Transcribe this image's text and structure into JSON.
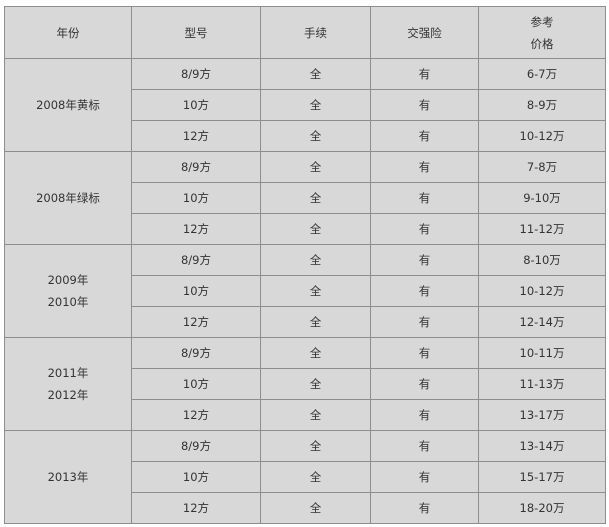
{
  "headers": {
    "year": "年份",
    "model": "型号",
    "papers": "手续",
    "insurance": "交强险",
    "price_line1": "参考",
    "price_line2": "价格"
  },
  "groups": [
    {
      "year_line1": "2008年黄标",
      "year_line2": "",
      "rows": [
        {
          "model": "8/9方",
          "papers": "全",
          "insurance": "有",
          "price": "6-7万"
        },
        {
          "model": "10方",
          "papers": "全",
          "insurance": "有",
          "price": "8-9万"
        },
        {
          "model": "12方",
          "papers": "全",
          "insurance": "有",
          "price": "10-12万"
        }
      ]
    },
    {
      "year_line1": "2008年绿标",
      "year_line2": "",
      "rows": [
        {
          "model": "8/9方",
          "papers": "全",
          "insurance": "有",
          "price": "7-8万"
        },
        {
          "model": "10方",
          "papers": "全",
          "insurance": "有",
          "price": "9-10万"
        },
        {
          "model": "12方",
          "papers": "全",
          "insurance": "有",
          "price": "11-12万"
        }
      ]
    },
    {
      "year_line1": "2009年",
      "year_line2": "2010年",
      "rows": [
        {
          "model": "8/9方",
          "papers": "全",
          "insurance": "有",
          "price": "8-10万"
        },
        {
          "model": "10方",
          "papers": "全",
          "insurance": "有",
          "price": "10-12万"
        },
        {
          "model": "12方",
          "papers": "全",
          "insurance": "有",
          "price": "12-14万"
        }
      ]
    },
    {
      "year_line1": "2011年",
      "year_line2": "2012年",
      "rows": [
        {
          "model": "8/9方",
          "papers": "全",
          "insurance": "有",
          "price": "10-11万"
        },
        {
          "model": "10方",
          "papers": "全",
          "insurance": "有",
          "price": "11-13万"
        },
        {
          "model": "12方",
          "papers": "全",
          "insurance": "有",
          "price": "13-17万"
        }
      ]
    },
    {
      "year_line1": "2013年",
      "year_line2": "",
      "rows": [
        {
          "model": "8/9方",
          "papers": "全",
          "insurance": "有",
          "price": "13-14万"
        },
        {
          "model": "10方",
          "papers": "全",
          "insurance": "有",
          "price": "15-17万"
        },
        {
          "model": "12方",
          "papers": "全",
          "insurance": "有",
          "price": "18-20万"
        }
      ]
    }
  ]
}
